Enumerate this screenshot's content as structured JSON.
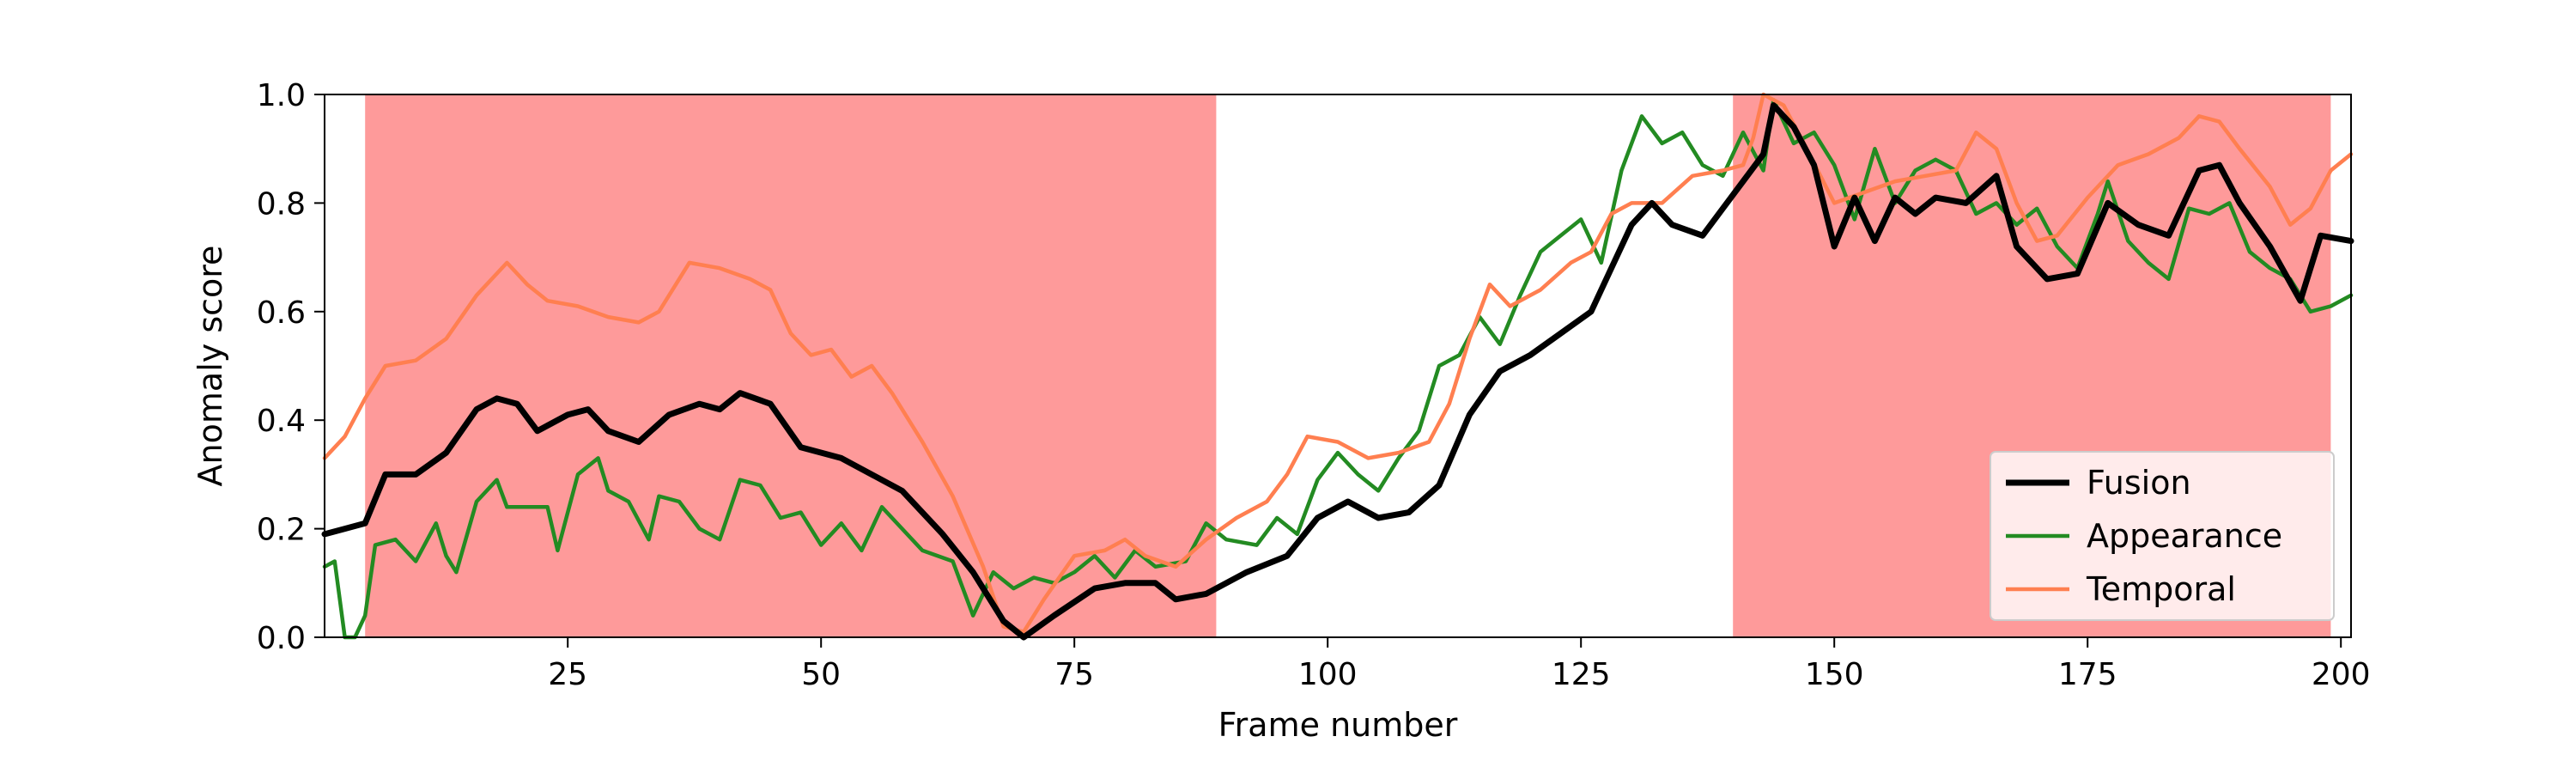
{
  "chart_data": {
    "type": "line",
    "xlabel": "Frame number",
    "ylabel": "Anomaly score",
    "xlim": [
      1,
      201
    ],
    "ylim": [
      0.0,
      1.0
    ],
    "xticks": [
      25,
      50,
      75,
      100,
      125,
      150,
      175,
      200
    ],
    "yticks": [
      0.0,
      0.2,
      0.4,
      0.6,
      0.8,
      1.0
    ],
    "xtick_labels": [
      "25",
      "50",
      "75",
      "100",
      "125",
      "150",
      "175",
      "200"
    ],
    "ytick_labels": [
      "0.0",
      "0.2",
      "0.4",
      "0.6",
      "0.8",
      "1.0"
    ],
    "grid": false,
    "legend_position": "lower-right",
    "anomaly_regions": [
      {
        "start": 5,
        "end": 89,
        "color": "#fe9a9a"
      },
      {
        "start": 140,
        "end": 199,
        "color": "#fe9a9a"
      }
    ],
    "series": [
      {
        "name": "Fusion",
        "color": "#000000",
        "points": [
          [
            1,
            0.19
          ],
          [
            3,
            0.2
          ],
          [
            5,
            0.21
          ],
          [
            7,
            0.3
          ],
          [
            10,
            0.3
          ],
          [
            13,
            0.34
          ],
          [
            16,
            0.42
          ],
          [
            18,
            0.44
          ],
          [
            20,
            0.43
          ],
          [
            22,
            0.38
          ],
          [
            25,
            0.41
          ],
          [
            27,
            0.42
          ],
          [
            29,
            0.38
          ],
          [
            32,
            0.36
          ],
          [
            35,
            0.41
          ],
          [
            38,
            0.43
          ],
          [
            40,
            0.42
          ],
          [
            42,
            0.45
          ],
          [
            45,
            0.43
          ],
          [
            48,
            0.35
          ],
          [
            52,
            0.33
          ],
          [
            55,
            0.3
          ],
          [
            58,
            0.27
          ],
          [
            62,
            0.19
          ],
          [
            65,
            0.12
          ],
          [
            68,
            0.03
          ],
          [
            70,
            0.0
          ],
          [
            73,
            0.04
          ],
          [
            77,
            0.09
          ],
          [
            80,
            0.1
          ],
          [
            83,
            0.1
          ],
          [
            85,
            0.07
          ],
          [
            88,
            0.08
          ],
          [
            92,
            0.12
          ],
          [
            96,
            0.15
          ],
          [
            99,
            0.22
          ],
          [
            102,
            0.25
          ],
          [
            105,
            0.22
          ],
          [
            108,
            0.23
          ],
          [
            111,
            0.28
          ],
          [
            114,
            0.41
          ],
          [
            117,
            0.49
          ],
          [
            120,
            0.52
          ],
          [
            123,
            0.56
          ],
          [
            126,
            0.6
          ],
          [
            128,
            0.68
          ],
          [
            130,
            0.76
          ],
          [
            132,
            0.8
          ],
          [
            134,
            0.76
          ],
          [
            137,
            0.74
          ],
          [
            139,
            0.79
          ],
          [
            141,
            0.84
          ],
          [
            143,
            0.89
          ],
          [
            144,
            0.98
          ],
          [
            146,
            0.94
          ],
          [
            148,
            0.87
          ],
          [
            150,
            0.72
          ],
          [
            152,
            0.81
          ],
          [
            154,
            0.73
          ],
          [
            156,
            0.81
          ],
          [
            158,
            0.78
          ],
          [
            160,
            0.81
          ],
          [
            163,
            0.8
          ],
          [
            166,
            0.85
          ],
          [
            168,
            0.72
          ],
          [
            171,
            0.66
          ],
          [
            174,
            0.67
          ],
          [
            177,
            0.8
          ],
          [
            180,
            0.76
          ],
          [
            183,
            0.74
          ],
          [
            186,
            0.86
          ],
          [
            188,
            0.87
          ],
          [
            190,
            0.8
          ],
          [
            193,
            0.72
          ],
          [
            196,
            0.62
          ],
          [
            198,
            0.74
          ],
          [
            201,
            0.73
          ]
        ]
      },
      {
        "name": "Appearance",
        "color": "#238b22",
        "points": [
          [
            1,
            0.13
          ],
          [
            2,
            0.14
          ],
          [
            3,
            0.0
          ],
          [
            4,
            0.0
          ],
          [
            5,
            0.04
          ],
          [
            6,
            0.17
          ],
          [
            8,
            0.18
          ],
          [
            10,
            0.14
          ],
          [
            12,
            0.21
          ],
          [
            13,
            0.15
          ],
          [
            14,
            0.12
          ],
          [
            16,
            0.25
          ],
          [
            18,
            0.29
          ],
          [
            19,
            0.24
          ],
          [
            21,
            0.24
          ],
          [
            23,
            0.24
          ],
          [
            24,
            0.16
          ],
          [
            26,
            0.3
          ],
          [
            28,
            0.33
          ],
          [
            29,
            0.27
          ],
          [
            31,
            0.25
          ],
          [
            33,
            0.18
          ],
          [
            34,
            0.26
          ],
          [
            36,
            0.25
          ],
          [
            38,
            0.2
          ],
          [
            40,
            0.18
          ],
          [
            42,
            0.29
          ],
          [
            44,
            0.28
          ],
          [
            46,
            0.22
          ],
          [
            48,
            0.23
          ],
          [
            50,
            0.17
          ],
          [
            52,
            0.21
          ],
          [
            54,
            0.16
          ],
          [
            56,
            0.24
          ],
          [
            58,
            0.2
          ],
          [
            60,
            0.16
          ],
          [
            63,
            0.14
          ],
          [
            65,
            0.04
          ],
          [
            67,
            0.12
          ],
          [
            69,
            0.09
          ],
          [
            71,
            0.11
          ],
          [
            73,
            0.1
          ],
          [
            75,
            0.12
          ],
          [
            77,
            0.15
          ],
          [
            79,
            0.11
          ],
          [
            81,
            0.16
          ],
          [
            83,
            0.13
          ],
          [
            86,
            0.14
          ],
          [
            88,
            0.21
          ],
          [
            90,
            0.18
          ],
          [
            93,
            0.17
          ],
          [
            95,
            0.22
          ],
          [
            97,
            0.19
          ],
          [
            99,
            0.29
          ],
          [
            101,
            0.34
          ],
          [
            103,
            0.3
          ],
          [
            105,
            0.27
          ],
          [
            107,
            0.33
          ],
          [
            109,
            0.38
          ],
          [
            111,
            0.5
          ],
          [
            113,
            0.52
          ],
          [
            115,
            0.59
          ],
          [
            117,
            0.54
          ],
          [
            119,
            0.63
          ],
          [
            121,
            0.71
          ],
          [
            123,
            0.74
          ],
          [
            125,
            0.77
          ],
          [
            127,
            0.69
          ],
          [
            129,
            0.86
          ],
          [
            131,
            0.96
          ],
          [
            133,
            0.91
          ],
          [
            135,
            0.93
          ],
          [
            137,
            0.87
          ],
          [
            139,
            0.85
          ],
          [
            141,
            0.93
          ],
          [
            143,
            0.86
          ],
          [
            144,
            0.99
          ],
          [
            146,
            0.91
          ],
          [
            148,
            0.93
          ],
          [
            150,
            0.87
          ],
          [
            152,
            0.77
          ],
          [
            154,
            0.9
          ],
          [
            156,
            0.8
          ],
          [
            158,
            0.86
          ],
          [
            160,
            0.88
          ],
          [
            162,
            0.86
          ],
          [
            164,
            0.78
          ],
          [
            166,
            0.8
          ],
          [
            168,
            0.76
          ],
          [
            170,
            0.79
          ],
          [
            172,
            0.72
          ],
          [
            174,
            0.68
          ],
          [
            176,
            0.78
          ],
          [
            177,
            0.84
          ],
          [
            179,
            0.73
          ],
          [
            181,
            0.69
          ],
          [
            183,
            0.66
          ],
          [
            185,
            0.79
          ],
          [
            187,
            0.78
          ],
          [
            189,
            0.8
          ],
          [
            191,
            0.71
          ],
          [
            193,
            0.68
          ],
          [
            195,
            0.66
          ],
          [
            197,
            0.6
          ],
          [
            199,
            0.61
          ],
          [
            201,
            0.63
          ]
        ]
      },
      {
        "name": "Temporal",
        "color": "#ff7f50",
        "points": [
          [
            1,
            0.33
          ],
          [
            3,
            0.37
          ],
          [
            5,
            0.44
          ],
          [
            7,
            0.5
          ],
          [
            10,
            0.51
          ],
          [
            13,
            0.55
          ],
          [
            16,
            0.63
          ],
          [
            19,
            0.69
          ],
          [
            21,
            0.65
          ],
          [
            23,
            0.62
          ],
          [
            26,
            0.61
          ],
          [
            29,
            0.59
          ],
          [
            32,
            0.58
          ],
          [
            34,
            0.6
          ],
          [
            37,
            0.69
          ],
          [
            40,
            0.68
          ],
          [
            43,
            0.66
          ],
          [
            45,
            0.64
          ],
          [
            47,
            0.56
          ],
          [
            49,
            0.52
          ],
          [
            51,
            0.53
          ],
          [
            53,
            0.48
          ],
          [
            55,
            0.5
          ],
          [
            57,
            0.45
          ],
          [
            60,
            0.36
          ],
          [
            63,
            0.26
          ],
          [
            66,
            0.13
          ],
          [
            68,
            0.02
          ],
          [
            70,
            0.01
          ],
          [
            72,
            0.07
          ],
          [
            75,
            0.15
          ],
          [
            78,
            0.16
          ],
          [
            80,
            0.18
          ],
          [
            82,
            0.15
          ],
          [
            85,
            0.13
          ],
          [
            88,
            0.18
          ],
          [
            91,
            0.22
          ],
          [
            94,
            0.25
          ],
          [
            96,
            0.3
          ],
          [
            98,
            0.37
          ],
          [
            101,
            0.36
          ],
          [
            104,
            0.33
          ],
          [
            107,
            0.34
          ],
          [
            110,
            0.36
          ],
          [
            112,
            0.43
          ],
          [
            114,
            0.55
          ],
          [
            116,
            0.65
          ],
          [
            118,
            0.61
          ],
          [
            121,
            0.64
          ],
          [
            124,
            0.69
          ],
          [
            126,
            0.71
          ],
          [
            128,
            0.78
          ],
          [
            130,
            0.8
          ],
          [
            133,
            0.8
          ],
          [
            136,
            0.85
          ],
          [
            139,
            0.86
          ],
          [
            141,
            0.87
          ],
          [
            142,
            0.92
          ],
          [
            143,
            1.0
          ],
          [
            145,
            0.98
          ],
          [
            147,
            0.91
          ],
          [
            150,
            0.8
          ],
          [
            153,
            0.82
          ],
          [
            156,
            0.84
          ],
          [
            159,
            0.85
          ],
          [
            162,
            0.86
          ],
          [
            164,
            0.93
          ],
          [
            166,
            0.9
          ],
          [
            168,
            0.8
          ],
          [
            170,
            0.73
          ],
          [
            172,
            0.74
          ],
          [
            175,
            0.81
          ],
          [
            178,
            0.87
          ],
          [
            181,
            0.89
          ],
          [
            184,
            0.92
          ],
          [
            186,
            0.96
          ],
          [
            188,
            0.95
          ],
          [
            190,
            0.9
          ],
          [
            193,
            0.83
          ],
          [
            195,
            0.76
          ],
          [
            197,
            0.79
          ],
          [
            199,
            0.86
          ],
          [
            201,
            0.89
          ]
        ]
      }
    ]
  }
}
